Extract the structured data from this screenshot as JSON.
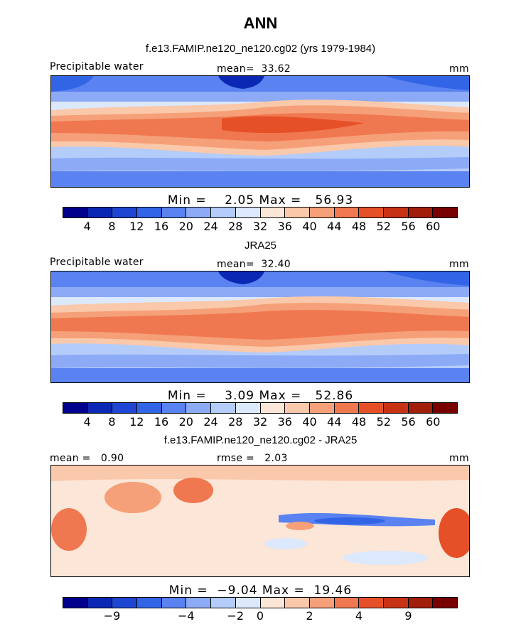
{
  "title": "ANN",
  "panels": [
    {
      "heading": "f.e13.FAMIP.ne120_ne120.cg02 (yrs 1979-1984)",
      "left_label": "Precipitable water",
      "center_label": "mean=  33.62",
      "units": "mm",
      "minmax": "Min =    2.05 Max =   56.93",
      "colorbar": {
        "colors": [
          "#00008c",
          "#0a28b4",
          "#1e46d2",
          "#3264e6",
          "#5a82f0",
          "#8caaf5",
          "#b4ccfa",
          "#dce8fc",
          "#fce6d8",
          "#fac8aa",
          "#f5a078",
          "#f07850",
          "#e65028",
          "#c83214",
          "#a01e0a",
          "#780000"
        ],
        "labels": [
          "4",
          "8",
          "12",
          "16",
          "20",
          "24",
          "28",
          "32",
          "36",
          "40",
          "44",
          "48",
          "52",
          "56",
          "60"
        ]
      }
    },
    {
      "heading": "JRA25",
      "left_label": "Precipitable water",
      "center_label": "mean=  32.40",
      "units": "mm",
      "minmax": "Min =    3.09 Max =   52.86",
      "colorbar": {
        "colors": [
          "#00008c",
          "#0a28b4",
          "#1e46d2",
          "#3264e6",
          "#5a82f0",
          "#8caaf5",
          "#b4ccfa",
          "#dce8fc",
          "#fce6d8",
          "#fac8aa",
          "#f5a078",
          "#f07850",
          "#e65028",
          "#c83214",
          "#a01e0a",
          "#780000"
        ],
        "labels": [
          "4",
          "8",
          "12",
          "16",
          "20",
          "24",
          "28",
          "32",
          "36",
          "40",
          "44",
          "48",
          "52",
          "56",
          "60"
        ]
      }
    },
    {
      "heading": "f.e13.FAMIP.ne120_ne120.cg02 - JRA25",
      "left_label": "mean =   0.90",
      "center_label": "rmse =   2.03",
      "units": "mm",
      "minmax": "Min =  −9.04 Max =  19.46",
      "colorbar": {
        "colors": [
          "#00008c",
          "#0a28b4",
          "#1e46d2",
          "#3264e6",
          "#5a82f0",
          "#8caaf5",
          "#b4ccfa",
          "#dce8fc",
          "#fce6d8",
          "#fac8aa",
          "#f5a078",
          "#f07850",
          "#e65028",
          "#c83214",
          "#a01e0a",
          "#780000"
        ],
        "labels": [
          "−9",
          "−4",
          "−2",
          "0",
          "2",
          "4",
          "9"
        ]
      }
    }
  ]
}
